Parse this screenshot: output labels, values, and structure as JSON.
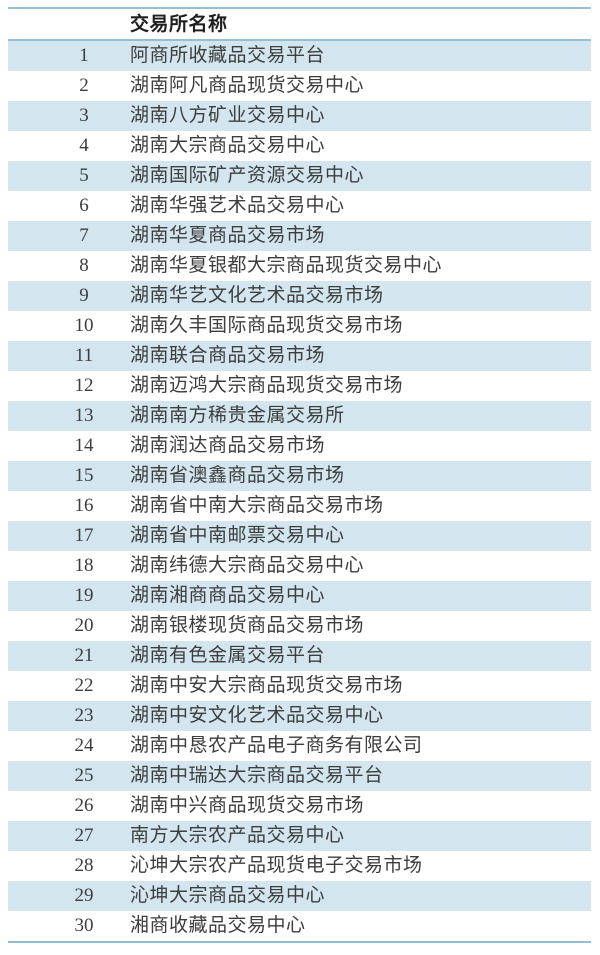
{
  "table": {
    "header": {
      "number_label": "",
      "name_label": "交易所名称"
    },
    "rows": [
      {
        "num": "1",
        "name": "阿商所收藏品交易平台"
      },
      {
        "num": "2",
        "name": "湖南阿凡商品现货交易中心"
      },
      {
        "num": "3",
        "name": "湖南八方矿业交易中心"
      },
      {
        "num": "4",
        "name": "湖南大宗商品交易中心"
      },
      {
        "num": "5",
        "name": "湖南国际矿产资源交易中心"
      },
      {
        "num": "6",
        "name": "湖南华强艺术品交易中心"
      },
      {
        "num": "7",
        "name": "湖南华夏商品交易市场"
      },
      {
        "num": "8",
        "name": "湖南华夏银都大宗商品现货交易中心"
      },
      {
        "num": "9",
        "name": "湖南华艺文化艺术品交易市场"
      },
      {
        "num": "10",
        "name": "湖南久丰国际商品现货交易市场"
      },
      {
        "num": "11",
        "name": "湖南联合商品交易市场"
      },
      {
        "num": "12",
        "name": "湖南迈鸿大宗商品现货交易市场"
      },
      {
        "num": "13",
        "name": "湖南南方稀贵金属交易所"
      },
      {
        "num": "14",
        "name": "湖南润达商品交易市场"
      },
      {
        "num": "15",
        "name": "湖南省澳鑫商品交易市场"
      },
      {
        "num": "16",
        "name": "湖南省中南大宗商品交易市场"
      },
      {
        "num": "17",
        "name": "湖南省中南邮票交易中心"
      },
      {
        "num": "18",
        "name": "湖南纬德大宗商品交易中心"
      },
      {
        "num": "19",
        "name": "湖南湘商商品交易中心"
      },
      {
        "num": "20",
        "name": "湖南银楼现货商品交易市场"
      },
      {
        "num": "21",
        "name": "湖南有色金属交易平台"
      },
      {
        "num": "22",
        "name": "湖南中安大宗商品现货交易市场"
      },
      {
        "num": "23",
        "name": "湖南中安文化艺术品交易中心"
      },
      {
        "num": "24",
        "name": "湖南中恳农产品电子商务有限公司"
      },
      {
        "num": "25",
        "name": "湖南中瑞达大宗商品交易平台"
      },
      {
        "num": "26",
        "name": "湖南中兴商品现货交易市场"
      },
      {
        "num": "27",
        "name": "南方大宗农产品交易中心"
      },
      {
        "num": "28",
        "name": "沁坤大宗农产品现货电子交易市场"
      },
      {
        "num": "29",
        "name": "沁坤大宗商品交易中心"
      },
      {
        "num": "30",
        "name": "湘商收藏品交易中心"
      }
    ],
    "colors": {
      "stripe": "#d3e6ef",
      "border": "#93bed3",
      "text": "#3d3d3d",
      "header_text": "#1f1f1f"
    }
  }
}
